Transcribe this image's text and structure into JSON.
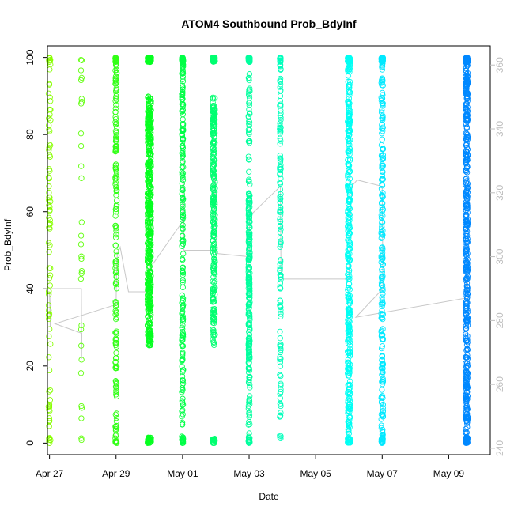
{
  "chart_data": {
    "type": "scatter",
    "title": "ATOM4 Southbound Prob_BdyInf",
    "xlabel": "Date",
    "ylabel": "Prob_BdyInf",
    "x_type": "date",
    "xlim": [
      "2017-04-26T22:30",
      "2017-05-10T06:00"
    ],
    "ylim": [
      -3,
      103
    ],
    "y_ticks": [
      0,
      20,
      40,
      60,
      80,
      100
    ],
    "x_ticks": [
      {
        "date": "2017-04-27",
        "label": "Apr 27"
      },
      {
        "date": "2017-04-29",
        "label": "Apr 29"
      },
      {
        "date": "2017-05-01",
        "label": "May 01"
      },
      {
        "date": "2017-05-03",
        "label": "May 03"
      },
      {
        "date": "2017-05-05",
        "label": "May 05"
      },
      {
        "date": "2017-05-07",
        "label": "May 07"
      },
      {
        "date": "2017-05-09",
        "label": "May 09"
      }
    ],
    "y2lim": [
      238,
      366
    ],
    "y2_ticks": [
      240,
      260,
      280,
      300,
      320,
      340,
      360
    ],
    "grid": false,
    "legend": "none",
    "colors": {
      "line": "#c8c8c8",
      "axis": "#000000",
      "axis2": "#bebebe",
      "point_stops": [
        "#88ff00",
        "#00ff22",
        "#00ffaa",
        "#00ffff",
        "#0088ff"
      ]
    },
    "clusters": [
      {
        "t": "2017-04-27T00:00",
        "spread_hours": 1.5,
        "n": 95,
        "pattern": "sparse"
      },
      {
        "t": "2017-04-27T23:00",
        "spread_hours": 0.6,
        "n": 30,
        "pattern": "sparse"
      },
      {
        "t": "2017-04-29T00:00",
        "spread_hours": 1.0,
        "n": 200,
        "pattern": "full"
      },
      {
        "t": "2017-04-30T00:00",
        "spread_hours": 2.6,
        "n": 520,
        "pattern": "dense-mid"
      },
      {
        "t": "2017-05-01T00:00",
        "spread_hours": 1.0,
        "n": 250,
        "pattern": "full"
      },
      {
        "t": "2017-05-01T22:30",
        "spread_hours": 1.8,
        "n": 300,
        "pattern": "dense-mid"
      },
      {
        "t": "2017-05-03T00:00",
        "spread_hours": 1.0,
        "n": 330,
        "pattern": "lowmid"
      },
      {
        "t": "2017-05-03T22:30",
        "spread_hours": 0.7,
        "n": 160,
        "pattern": "full"
      },
      {
        "t": "2017-05-06T00:00",
        "spread_hours": 1.8,
        "n": 420,
        "pattern": "full"
      },
      {
        "t": "2017-05-07T00:00",
        "spread_hours": 1.3,
        "n": 270,
        "pattern": "full"
      },
      {
        "t": "2017-05-09T13:00",
        "spread_hours": 1.6,
        "n": 520,
        "pattern": "full"
      }
    ],
    "secondary_line": [
      {
        "t": "2017-04-27T00:00",
        "v": 289
      },
      {
        "t": "2017-04-27T00:30",
        "v": 278
      },
      {
        "t": "2017-04-27T01:00",
        "v": 290
      },
      {
        "t": "2017-04-27T23:00",
        "v": 290
      },
      {
        "t": "2017-04-27T23:10",
        "v": 268
      },
      {
        "t": "2017-04-27T23:20",
        "v": 276
      },
      {
        "t": "2017-04-27T04:00",
        "v": 279
      },
      {
        "t": "2017-04-29T00:00",
        "v": 285
      },
      {
        "t": "2017-04-29T00:30",
        "v": 298
      },
      {
        "t": "2017-04-29T01:00",
        "v": 301
      },
      {
        "t": "2017-04-29T03:00",
        "v": 303
      },
      {
        "t": "2017-04-29T09:00",
        "v": 289
      },
      {
        "t": "2017-04-30T00:00",
        "v": 289
      },
      {
        "t": "2017-04-30T01:00",
        "v": 300
      },
      {
        "t": "2017-04-30T03:00",
        "v": 298
      },
      {
        "t": "2017-05-01T00:00",
        "v": 311
      },
      {
        "t": "2017-05-01T00:30",
        "v": 340
      },
      {
        "t": "2017-05-01T01:00",
        "v": 302
      },
      {
        "t": "2017-05-01T06:00",
        "v": 302
      },
      {
        "t": "2017-05-01T22:30",
        "v": 302
      },
      {
        "t": "2017-05-01T23:30",
        "v": 330
      },
      {
        "t": "2017-05-02T00:30",
        "v": 301
      },
      {
        "t": "2017-05-03T00:00",
        "v": 300
      },
      {
        "t": "2017-05-03T00:30",
        "v": 318
      },
      {
        "t": "2017-05-03T01:00",
        "v": 313
      },
      {
        "t": "2017-05-03T22:30",
        "v": 322
      },
      {
        "t": "2017-05-03T23:00",
        "v": 296
      },
      {
        "t": "2017-05-04T00:00",
        "v": 293
      },
      {
        "t": "2017-05-06T00:00",
        "v": 293
      },
      {
        "t": "2017-05-06T01:00",
        "v": 310
      },
      {
        "t": "2017-05-06T02:00",
        "v": 322
      },
      {
        "t": "2017-05-06T06:00",
        "v": 324
      },
      {
        "t": "2017-05-07T00:00",
        "v": 322
      },
      {
        "t": "2017-05-07T00:30",
        "v": 290
      },
      {
        "t": "2017-05-06T05:00",
        "v": 281
      },
      {
        "t": "2017-05-09T12:00",
        "v": 287
      },
      {
        "t": "2017-05-09T13:00",
        "v": 304
      },
      {
        "t": "2017-05-09T14:00",
        "v": 284
      }
    ]
  }
}
